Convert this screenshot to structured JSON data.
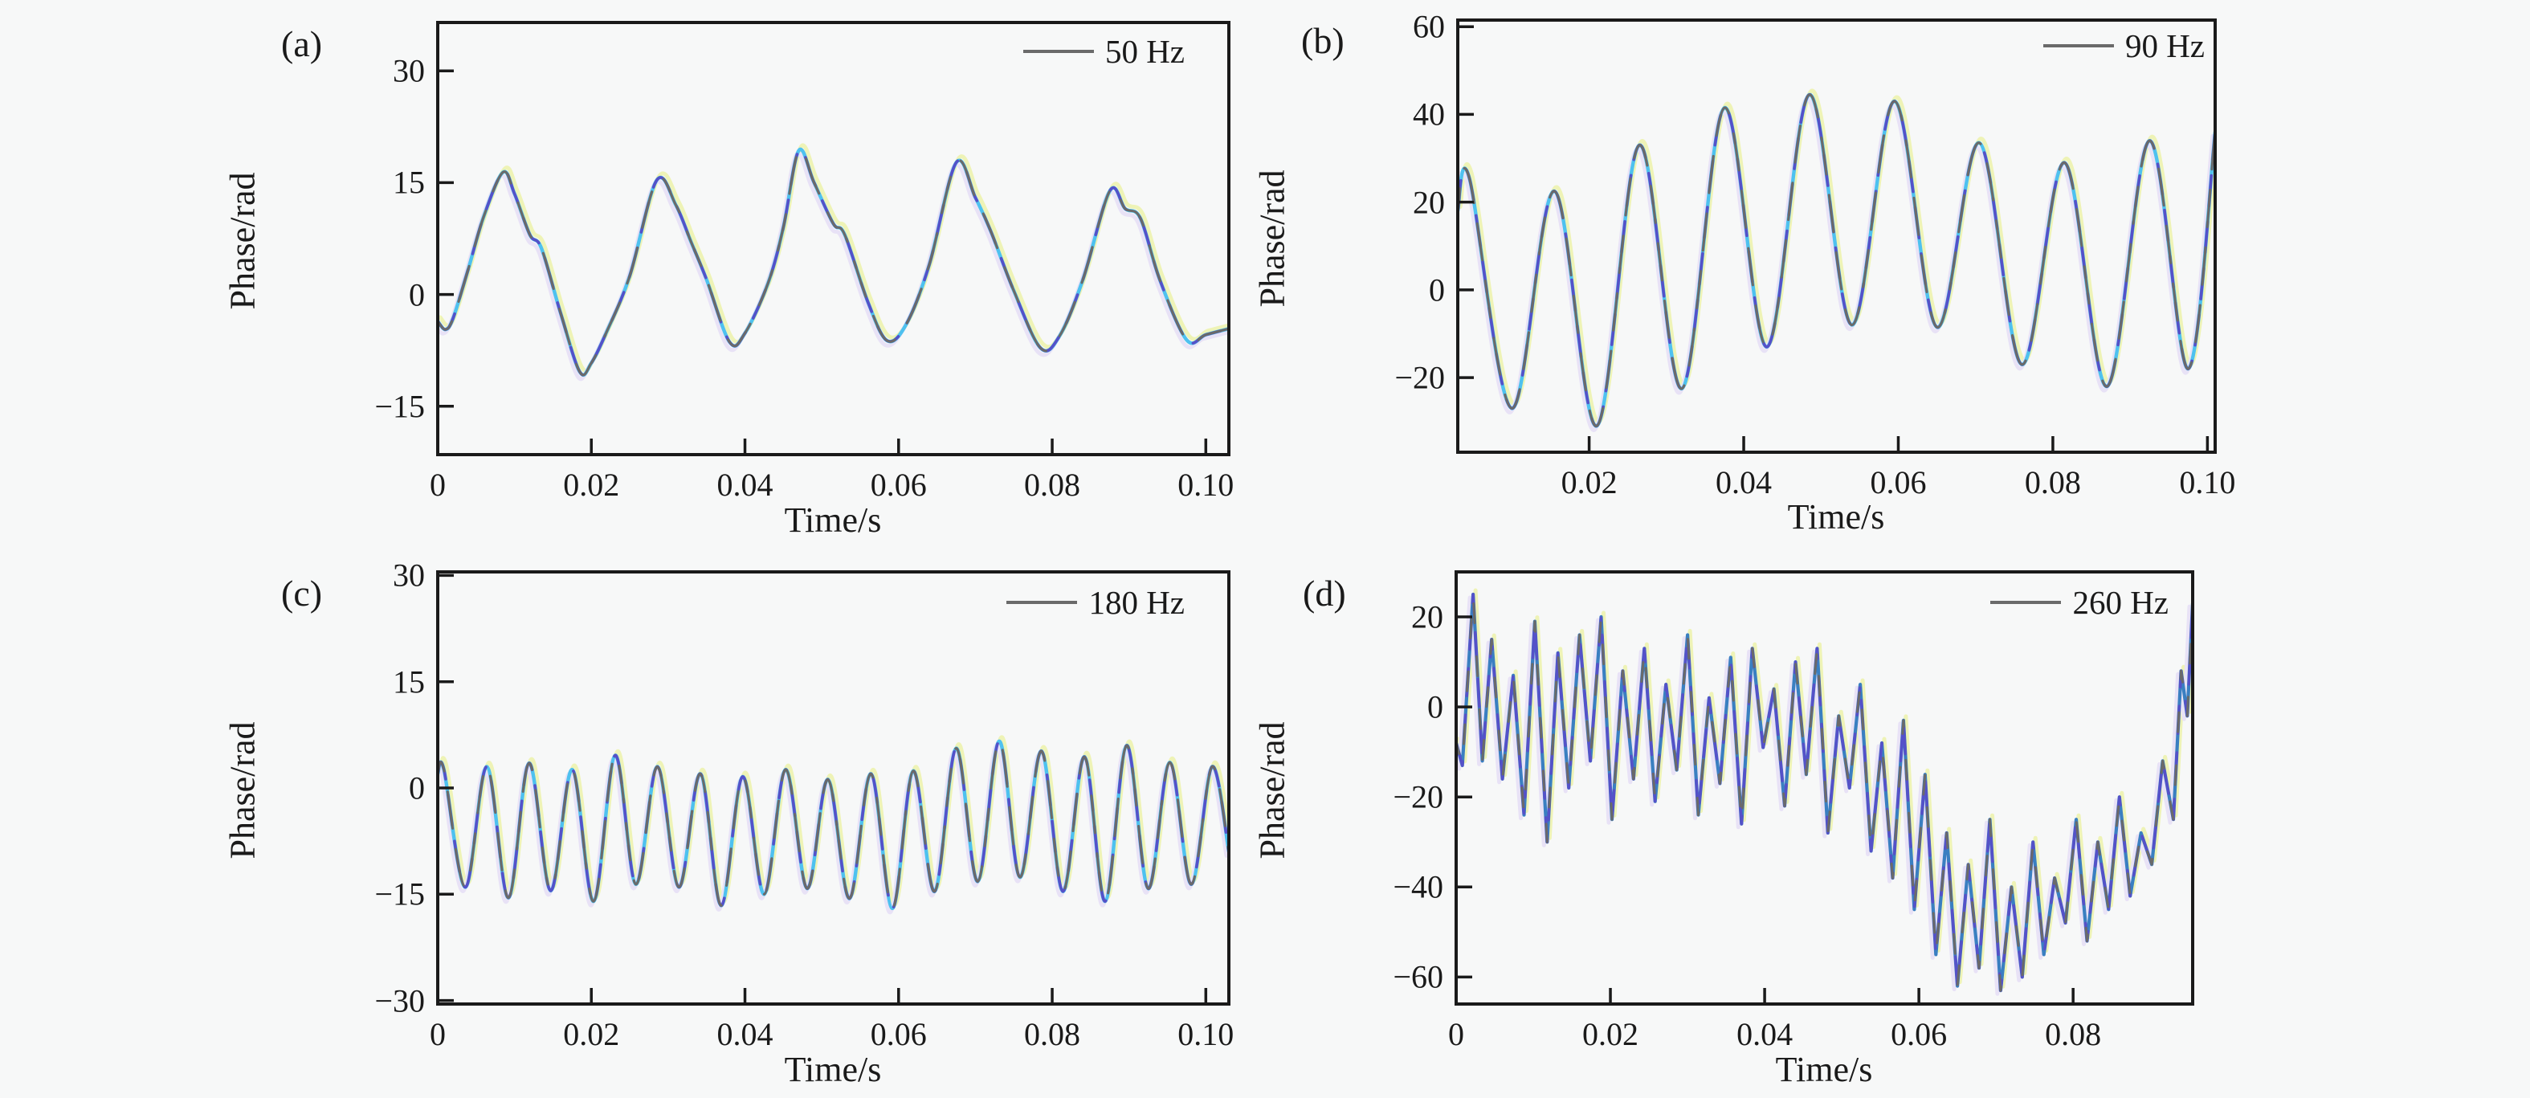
{
  "figure": {
    "background": "#f7f8f8",
    "axis_color": "#1a1a1a",
    "palette": {
      "line_gray": "#6a6a6a",
      "line_indigo": "#5551c8",
      "line_cyan": "#4ec1ef",
      "line_steel": "#3a7fc1",
      "ghost_yellow": "#eef3b6",
      "ghost_lavender": "#e8e2f6"
    }
  },
  "chart_data": [
    {
      "type": "line",
      "panel_letter": "(a)",
      "legend": "50 Hz",
      "legend_position": "top-right",
      "xlabel": "Time/s",
      "ylabel": "Phase/rad",
      "grid": false,
      "xlim": [
        0,
        0.103
      ],
      "ylim": [
        -21.5,
        36.5
      ],
      "xticks": [
        0,
        0.02,
        0.04,
        0.06,
        0.08,
        0.1
      ],
      "xtick_labels": [
        "0",
        "0.02",
        "0.04",
        "0.06",
        "0.08",
        "0.10"
      ],
      "yticks": [
        30,
        15,
        0,
        -15
      ],
      "ytick_labels": [
        "30",
        "15",
        "0",
        "−15"
      ],
      "interp": "spline",
      "style": "gray-dominant",
      "points": [
        [
          0,
          -3.6
        ],
        [
          0.001,
          -4.7
        ],
        [
          0.002,
          -3.2
        ],
        [
          0.004,
          3.5
        ],
        [
          0.006,
          10.5
        ],
        [
          0.0085,
          16.4
        ],
        [
          0.01,
          13.5
        ],
        [
          0.012,
          8.0
        ],
        [
          0.0135,
          6.2
        ],
        [
          0.016,
          -2.5
        ],
        [
          0.0185,
          -10.4
        ],
        [
          0.02,
          -9.2
        ],
        [
          0.022,
          -5.0
        ],
        [
          0.025,
          2.5
        ],
        [
          0.0285,
          15.3
        ],
        [
          0.031,
          12.0
        ],
        [
          0.033,
          7.0
        ],
        [
          0.035,
          2.0
        ],
        [
          0.038,
          -6.4
        ],
        [
          0.04,
          -5.2
        ],
        [
          0.043,
          1.5
        ],
        [
          0.045,
          9.0
        ],
        [
          0.047,
          19.3
        ],
        [
          0.049,
          15.0
        ],
        [
          0.0515,
          9.5
        ],
        [
          0.053,
          8.0
        ],
        [
          0.056,
          -1.0
        ],
        [
          0.0585,
          -6.2
        ],
        [
          0.061,
          -4.0
        ],
        [
          0.064,
          4.0
        ],
        [
          0.0675,
          17.7
        ],
        [
          0.07,
          13.0
        ],
        [
          0.072,
          8.5
        ],
        [
          0.075,
          0.5
        ],
        [
          0.0785,
          -7.2
        ],
        [
          0.081,
          -5.5
        ],
        [
          0.084,
          2.0
        ],
        [
          0.0875,
          13.9
        ],
        [
          0.0895,
          11.5
        ],
        [
          0.0915,
          10.2
        ],
        [
          0.094,
          2.0
        ],
        [
          0.0975,
          -6.1
        ],
        [
          0.1,
          -5.4
        ],
        [
          0.103,
          -4.6
        ]
      ]
    },
    {
      "type": "line",
      "panel_letter": "(b)",
      "legend": "90 Hz",
      "legend_position": "top-right",
      "xlabel": "Time/s",
      "ylabel": "Phase/rad",
      "grid": false,
      "xlim": [
        0.003,
        0.101
      ],
      "ylim": [
        -37,
        61.5
      ],
      "xticks": [
        0.02,
        0.04,
        0.06,
        0.08,
        0.1
      ],
      "xtick_labels": [
        "0.02",
        "0.04",
        "0.06",
        "0.08",
        "0.10"
      ],
      "yticks": [
        60,
        40,
        20,
        0,
        -20
      ],
      "ytick_labels": [
        "60",
        "40",
        "20",
        "0",
        "−20"
      ],
      "interp": "spline",
      "style": "gray-dominant",
      "points": [
        [
          0.003,
          18
        ],
        [
          0.0045,
          25.5
        ],
        [
          0.01,
          -27
        ],
        [
          0.0155,
          22.5
        ],
        [
          0.021,
          -31
        ],
        [
          0.0265,
          33
        ],
        [
          0.032,
          -22.5
        ],
        [
          0.0375,
          41.5
        ],
        [
          0.043,
          -13
        ],
        [
          0.0485,
          44.5
        ],
        [
          0.054,
          -8
        ],
        [
          0.0595,
          43
        ],
        [
          0.065,
          -8.5
        ],
        [
          0.0705,
          33.5
        ],
        [
          0.076,
          -17
        ],
        [
          0.0815,
          29
        ],
        [
          0.087,
          -22
        ],
        [
          0.0925,
          34
        ],
        [
          0.0975,
          -18
        ],
        [
          0.101,
          36
        ]
      ]
    },
    {
      "type": "line",
      "panel_letter": "(c)",
      "legend": "180 Hz",
      "legend_position": "top-right",
      "xlabel": "Time/s",
      "ylabel": "Phase/rad",
      "grid": false,
      "xlim": [
        0,
        0.103
      ],
      "ylim": [
        -30.5,
        30.5
      ],
      "xticks": [
        0,
        0.02,
        0.04,
        0.06,
        0.08,
        0.1
      ],
      "xtick_labels": [
        "0",
        "0.02",
        "0.04",
        "0.06",
        "0.08",
        "0.10"
      ],
      "yticks": [
        30,
        15,
        0,
        -15,
        -30
      ],
      "ytick_labels": [
        "30",
        "15",
        "0",
        "−15",
        "−30"
      ],
      "interp": "spline",
      "style": "gray-dominant",
      "points": [
        [
          0,
          2.0
        ],
        [
          0.0008,
          2.6
        ],
        [
          0.0036,
          -14
        ],
        [
          0.0064,
          3.0
        ],
        [
          0.0092,
          -15.5
        ],
        [
          0.0119,
          3.5
        ],
        [
          0.0147,
          -14.5
        ],
        [
          0.0175,
          2.6
        ],
        [
          0.0203,
          -16
        ],
        [
          0.0231,
          4.6
        ],
        [
          0.0258,
          -13.6
        ],
        [
          0.0286,
          3.0
        ],
        [
          0.0314,
          -14
        ],
        [
          0.0342,
          2.0
        ],
        [
          0.0369,
          -16.6
        ],
        [
          0.0397,
          1.6
        ],
        [
          0.0425,
          -15
        ],
        [
          0.0453,
          2.6
        ],
        [
          0.0481,
          -14.2
        ],
        [
          0.0508,
          1.2
        ],
        [
          0.0536,
          -15.6
        ],
        [
          0.0564,
          2.0
        ],
        [
          0.0592,
          -17
        ],
        [
          0.0619,
          2.4
        ],
        [
          0.0647,
          -14.6
        ],
        [
          0.0675,
          5.6
        ],
        [
          0.0703,
          -13.2
        ],
        [
          0.0731,
          6.6
        ],
        [
          0.0758,
          -12.6
        ],
        [
          0.0786,
          5.2
        ],
        [
          0.0814,
          -14.6
        ],
        [
          0.0842,
          4.4
        ],
        [
          0.0869,
          -16
        ],
        [
          0.0897,
          6.0
        ],
        [
          0.0925,
          -14.2
        ],
        [
          0.0953,
          3.6
        ],
        [
          0.0981,
          -13.6
        ],
        [
          0.1008,
          3.0
        ],
        [
          0.103,
          -9
        ]
      ]
    },
    {
      "type": "line",
      "panel_letter": "(d)",
      "legend": "260 Hz",
      "legend_position": "top-right",
      "xlabel": "Time/s",
      "ylabel": "Phase/rad",
      "grid": false,
      "xlim": [
        0,
        0.0955
      ],
      "ylim": [
        -66,
        30
      ],
      "xticks": [
        0,
        0.02,
        0.04,
        0.06,
        0.08
      ],
      "xtick_labels": [
        "0",
        "0.02",
        "0.04",
        "0.06",
        "0.08"
      ],
      "yticks": [
        20,
        0,
        -20,
        -40,
        -60
      ],
      "ytick_labels": [
        "20",
        "0",
        "−20",
        "−40",
        "−60"
      ],
      "interp": "linear",
      "style": "blue-dominant",
      "points": [
        [
          0,
          -8
        ],
        [
          0.0008,
          -13
        ],
        [
          0.0022,
          25
        ],
        [
          0.0034,
          -12
        ],
        [
          0.0046,
          15
        ],
        [
          0.006,
          -16
        ],
        [
          0.0074,
          7
        ],
        [
          0.0088,
          -24
        ],
        [
          0.0102,
          19
        ],
        [
          0.0118,
          -30
        ],
        [
          0.0132,
          12
        ],
        [
          0.0146,
          -18
        ],
        [
          0.016,
          16
        ],
        [
          0.0174,
          -12
        ],
        [
          0.0188,
          20
        ],
        [
          0.0202,
          -25
        ],
        [
          0.0216,
          8
        ],
        [
          0.023,
          -16
        ],
        [
          0.0244,
          13
        ],
        [
          0.0258,
          -21
        ],
        [
          0.0272,
          5
        ],
        [
          0.0286,
          -14
        ],
        [
          0.03,
          16
        ],
        [
          0.0314,
          -24
        ],
        [
          0.0328,
          2
        ],
        [
          0.0342,
          -17
        ],
        [
          0.0356,
          11
        ],
        [
          0.037,
          -26
        ],
        [
          0.0384,
          13
        ],
        [
          0.0398,
          -9
        ],
        [
          0.0412,
          4
        ],
        [
          0.0426,
          -22
        ],
        [
          0.044,
          10
        ],
        [
          0.0454,
          -15
        ],
        [
          0.0468,
          13
        ],
        [
          0.0482,
          -28
        ],
        [
          0.0496,
          -2
        ],
        [
          0.051,
          -18
        ],
        [
          0.0524,
          5
        ],
        [
          0.0538,
          -32
        ],
        [
          0.0552,
          -8
        ],
        [
          0.0566,
          -38
        ],
        [
          0.058,
          -3
        ],
        [
          0.0594,
          -45
        ],
        [
          0.0608,
          -15
        ],
        [
          0.0622,
          -55
        ],
        [
          0.0636,
          -28
        ],
        [
          0.065,
          -62
        ],
        [
          0.0664,
          -35
        ],
        [
          0.0678,
          -58
        ],
        [
          0.0692,
          -25
        ],
        [
          0.0706,
          -63
        ],
        [
          0.072,
          -40
        ],
        [
          0.0734,
          -60
        ],
        [
          0.0748,
          -30
        ],
        [
          0.0762,
          -55
        ],
        [
          0.0776,
          -38
        ],
        [
          0.079,
          -48
        ],
        [
          0.0804,
          -25
        ],
        [
          0.0818,
          -52
        ],
        [
          0.0832,
          -30
        ],
        [
          0.0846,
          -45
        ],
        [
          0.086,
          -20
        ],
        [
          0.0874,
          -42
        ],
        [
          0.0888,
          -28
        ],
        [
          0.0902,
          -35
        ],
        [
          0.0916,
          -12
        ],
        [
          0.093,
          -25
        ],
        [
          0.094,
          8
        ],
        [
          0.0948,
          -2
        ],
        [
          0.0955,
          23
        ]
      ]
    }
  ]
}
